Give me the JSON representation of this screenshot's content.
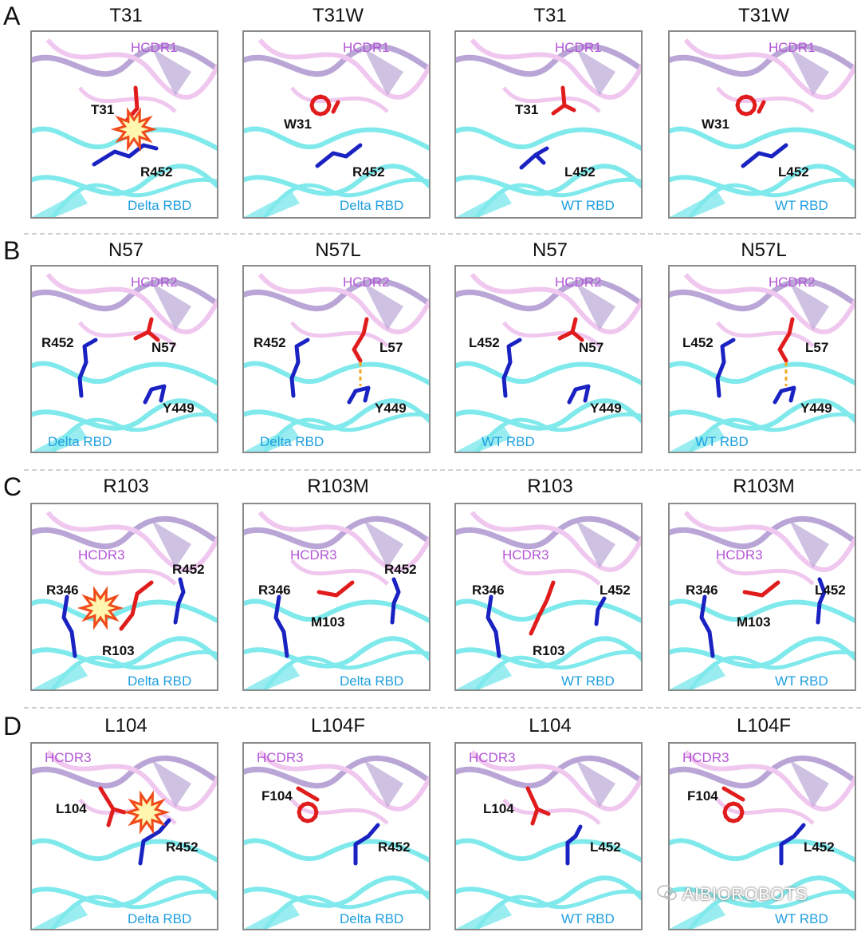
{
  "rows": [
    {
      "letter": "A",
      "panels": [
        {
          "title": "T31",
          "cdr": "HCDR1",
          "ab_label": "T31",
          "rbd_res": "R452",
          "rbd": "Delta RBD",
          "clash": true
        },
        {
          "title": "T31W",
          "cdr": "HCDR1",
          "ab_label": "W31",
          "rbd_res": "R452",
          "rbd": "Delta RBD",
          "clash": false
        },
        {
          "title": "T31",
          "cdr": "HCDR1",
          "ab_label": "T31",
          "rbd_res": "L452",
          "rbd": "WT RBD",
          "clash": false
        },
        {
          "title": "T31W",
          "cdr": "HCDR1",
          "ab_label": "W31",
          "rbd_res": "L452",
          "rbd": "WT RBD",
          "clash": false
        }
      ]
    },
    {
      "letter": "B",
      "panels": [
        {
          "title": "N57",
          "cdr": "HCDR2",
          "ab_label": "N57",
          "rbd_res": "R452",
          "rbd_res2": "Y449",
          "rbd": "Delta RBD",
          "clash": false
        },
        {
          "title": "N57L",
          "cdr": "HCDR2",
          "ab_label": "L57",
          "rbd_res": "R452",
          "rbd_res2": "Y449",
          "rbd": "Delta RBD",
          "clash": false
        },
        {
          "title": "N57",
          "cdr": "HCDR2",
          "ab_label": "N57",
          "rbd_res": "L452",
          "rbd_res2": "Y449",
          "rbd": "WT RBD",
          "clash": false
        },
        {
          "title": "N57L",
          "cdr": "HCDR2",
          "ab_label": "L57",
          "rbd_res": "L452",
          "rbd_res2": "Y449",
          "rbd": "WT RBD",
          "clash": false
        }
      ]
    },
    {
      "letter": "C",
      "panels": [
        {
          "title": "R103",
          "cdr": "HCDR3",
          "ab_label": "R103",
          "rbd_res": "R452",
          "rbd_res2": "R346",
          "rbd": "Delta RBD",
          "clash": true
        },
        {
          "title": "R103M",
          "cdr": "HCDR3",
          "ab_label": "M103",
          "rbd_res": "R452",
          "rbd_res2": "R346",
          "rbd": "Delta RBD",
          "clash": false
        },
        {
          "title": "R103",
          "cdr": "HCDR3",
          "ab_label": "R103",
          "rbd_res": "L452",
          "rbd_res2": "R346",
          "rbd": "WT RBD",
          "clash": false
        },
        {
          "title": "R103M",
          "cdr": "HCDR3",
          "ab_label": "M103",
          "rbd_res": "L452",
          "rbd_res2": "R346",
          "rbd": "WT RBD",
          "clash": false
        }
      ]
    },
    {
      "letter": "D",
      "panels": [
        {
          "title": "L104",
          "cdr": "HCDR3",
          "ab_label": "L104",
          "rbd_res": "R452",
          "rbd": "Delta RBD",
          "clash": true
        },
        {
          "title": "L104F",
          "cdr": "HCDR3",
          "ab_label": "F104",
          "rbd_res": "R452",
          "rbd": "Delta RBD",
          "clash": false
        },
        {
          "title": "L104",
          "cdr": "HCDR3",
          "ab_label": "L104",
          "rbd_res": "L452",
          "rbd": "WT RBD",
          "clash": false
        },
        {
          "title": "L104F",
          "cdr": "HCDR3",
          "ab_label": "F104",
          "rbd_res": "L452",
          "rbd": "WT RBD",
          "clash": false
        }
      ]
    }
  ],
  "colors": {
    "antibody_ribbon": "#b9a6d6",
    "antibody_light": "#f0c8ef",
    "rbd_ribbon": "#7fe9ec",
    "antibody_residue": "#e01c1c",
    "rbd_residue": "#1a22c2",
    "hbond": "#f5a623",
    "clash_fill": "#fff7b0",
    "clash_stroke": "#f04a1a"
  },
  "watermark": "AIBIOROBOTS"
}
